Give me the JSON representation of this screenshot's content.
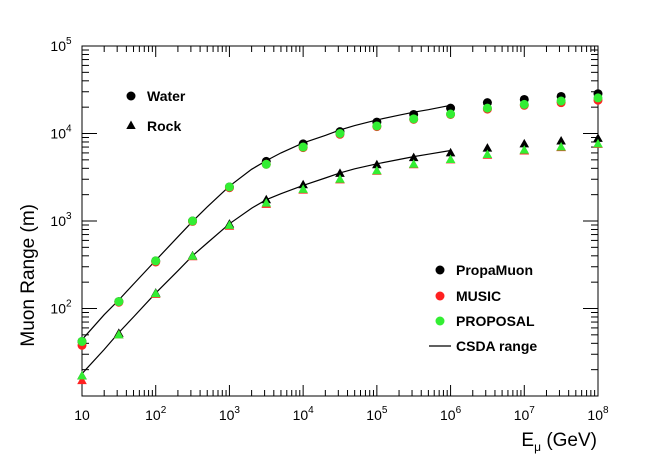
{
  "chart_data": {
    "type": "scatter",
    "xscale": "log",
    "yscale": "log",
    "xlim": [
      10,
      100000000
    ],
    "ylim": [
      10,
      100000
    ],
    "xlabel": "E",
    "xlabel_subscript": "μ",
    "xlabel_unit": "(GeV)",
    "ylabel": "Muon Range (m)",
    "x_tick_labels": [
      {
        "value": 10,
        "base": "10",
        "exp": ""
      },
      {
        "value": 100,
        "base": "10",
        "exp": "2"
      },
      {
        "value": 1000,
        "base": "10",
        "exp": "3"
      },
      {
        "value": 10000,
        "base": "10",
        "exp": "4"
      },
      {
        "value": 100000,
        "base": "10",
        "exp": "5"
      },
      {
        "value": 1000000,
        "base": "10",
        "exp": "6"
      },
      {
        "value": 10000000,
        "base": "10",
        "exp": "7"
      },
      {
        "value": 100000000,
        "base": "10",
        "exp": "8"
      }
    ],
    "y_tick_labels": [
      {
        "value": 100,
        "base": "10",
        "exp": "2"
      },
      {
        "value": 1000,
        "base": "10",
        "exp": "3"
      },
      {
        "value": 10000,
        "base": "10",
        "exp": "4"
      },
      {
        "value": 100000,
        "base": "10",
        "exp": "5"
      }
    ],
    "x": [
      10,
      31.6,
      100,
      316,
      1000,
      3160,
      10000,
      31600,
      100000,
      316000,
      1000000,
      3160000,
      10000000,
      31600000,
      100000000
    ],
    "series": [
      {
        "name": "PropaMuon",
        "medium": "Water",
        "color": "#000000",
        "values": [
          42,
          120,
          350,
          1000,
          2450,
          4800,
          7600,
          10500,
          13500,
          16500,
          19500,
          22500,
          24500,
          26500,
          28500
        ]
      },
      {
        "name": "MUSIC",
        "medium": "Water",
        "color": "#ff2020",
        "values": [
          38,
          118,
          340,
          990,
          2400,
          4450,
          6900,
          9800,
          12000,
          14500,
          16500,
          19000,
          21000,
          22500,
          24000
        ]
      },
      {
        "name": "PROPOSAL",
        "medium": "Water",
        "color": "#33ee33",
        "values": [
          42,
          120,
          350,
          1000,
          2450,
          4450,
          7000,
          10000,
          12200,
          14700,
          16700,
          19500,
          21500,
          23500,
          25500
        ]
      },
      {
        "name": "PropaMuon",
        "medium": "Rock",
        "color": "#000000",
        "values": [
          17,
          52,
          150,
          400,
          920,
          1750,
          2600,
          3500,
          4400,
          5300,
          6000,
          6800,
          7600,
          8200,
          8800
        ]
      },
      {
        "name": "MUSIC",
        "medium": "Rock",
        "color": "#ff2020",
        "values": [
          15,
          50,
          145,
          390,
          870,
          1550,
          2250,
          2950,
          3700,
          4400,
          5000,
          5650,
          6300,
          6900,
          7500
        ]
      },
      {
        "name": "PROPOSAL",
        "medium": "Rock",
        "color": "#33ee33",
        "values": [
          17,
          50,
          148,
          395,
          890,
          1600,
          2300,
          3000,
          3750,
          4450,
          5050,
          5750,
          6450,
          7000,
          7600
        ]
      }
    ],
    "csda": [
      {
        "name": "CSDA range",
        "medium": "Water",
        "x": [
          10,
          20,
          31.6,
          50,
          100,
          200,
          316,
          500,
          1000,
          2000,
          3160,
          5000,
          10000,
          20000,
          31600,
          50000,
          100000,
          200000,
          316000,
          500000,
          1000000
        ],
        "values": [
          44,
          85,
          125,
          190,
          355,
          660,
          990,
          1450,
          2500,
          3900,
          4900,
          6000,
          7800,
          9500,
          11000,
          12300,
          14300,
          16200,
          17500,
          18700,
          21000
        ]
      },
      {
        "name": "CSDA range",
        "medium": "Rock",
        "x": [
          10,
          20,
          31.6,
          50,
          100,
          200,
          316,
          500,
          1000,
          2000,
          3160,
          5000,
          10000,
          20000,
          31600,
          50000,
          100000,
          200000,
          316000,
          500000,
          1000000
        ],
        "values": [
          18,
          34,
          53,
          80,
          150,
          270,
          400,
          560,
          930,
          1400,
          1750,
          2050,
          2550,
          3100,
          3550,
          3950,
          4500,
          5050,
          5450,
          5800,
          6400
        ]
      }
    ],
    "medium_legend": [
      {
        "label": "Water",
        "marker": "circle"
      },
      {
        "label": "Rock",
        "marker": "triangle"
      }
    ],
    "source_legend": [
      {
        "label": "PropaMuon",
        "color": "#000000",
        "kind": "marker"
      },
      {
        "label": "MUSIC",
        "color": "#ff2020",
        "kind": "marker"
      },
      {
        "label": "PROPOSAL",
        "color": "#33ee33",
        "kind": "marker"
      },
      {
        "label": "CSDA range",
        "color": "#000000",
        "kind": "line"
      }
    ],
    "legend_position": [
      "top-left",
      "bottom-right"
    ]
  }
}
